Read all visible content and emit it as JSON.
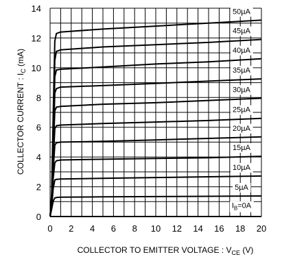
{
  "chart_data": {
    "type": "line",
    "xlabel": "COLLECTOR TO EMITTER VOLTAGE : V",
    "xlabel_sub": "CE",
    "xlabel_unit": " (V)",
    "ylabel": "COLLECTOR CURRENT : I",
    "ylabel_sub": "C",
    "ylabel_unit": " (mA)",
    "xlim": [
      0,
      20
    ],
    "ylim": [
      0,
      14
    ],
    "xticks": [
      "0",
      "2",
      "4",
      "6",
      "8",
      "10",
      "12",
      "14",
      "16",
      "18",
      "20"
    ],
    "yticks": [
      "0",
      "2",
      "4",
      "6",
      "8",
      "10",
      "12",
      "14"
    ],
    "grid": true,
    "series": [
      {
        "name": "50µA",
        "points": [
          [
            0.0,
            0.0
          ],
          [
            0.15,
            1.5
          ],
          [
            0.3,
            7.0
          ],
          [
            0.45,
            11.8
          ],
          [
            0.6,
            12.3
          ],
          [
            1.0,
            12.4
          ],
          [
            5,
            12.6
          ],
          [
            10,
            12.8
          ],
          [
            15,
            13.0
          ],
          [
            20,
            13.2
          ]
        ]
      },
      {
        "name": "45µA",
        "points": [
          [
            0.0,
            0.0
          ],
          [
            0.15,
            1.4
          ],
          [
            0.3,
            6.0
          ],
          [
            0.45,
            10.5
          ],
          [
            0.6,
            11.1
          ],
          [
            1.0,
            11.2
          ],
          [
            5,
            11.4
          ],
          [
            10,
            11.55
          ],
          [
            15,
            11.7
          ],
          [
            20,
            11.9
          ]
        ]
      },
      {
        "name": "40µA",
        "points": [
          [
            0.0,
            0.0
          ],
          [
            0.15,
            1.3
          ],
          [
            0.3,
            5.5
          ],
          [
            0.45,
            9.4
          ],
          [
            0.6,
            9.85
          ],
          [
            1.0,
            9.9
          ],
          [
            5,
            10.05
          ],
          [
            10,
            10.25
          ],
          [
            15,
            10.4
          ],
          [
            20,
            10.6
          ]
        ]
      },
      {
        "name": "35µA",
        "points": [
          [
            0.0,
            0.0
          ],
          [
            0.15,
            1.2
          ],
          [
            0.3,
            5.0
          ],
          [
            0.45,
            8.3
          ],
          [
            0.6,
            8.6
          ],
          [
            1.0,
            8.7
          ],
          [
            5,
            8.8
          ],
          [
            10,
            8.95
          ],
          [
            15,
            9.1
          ],
          [
            20,
            9.25
          ]
        ]
      },
      {
        "name": "30µA",
        "points": [
          [
            0.0,
            0.0
          ],
          [
            0.15,
            1.1
          ],
          [
            0.3,
            4.5
          ],
          [
            0.45,
            7.1
          ],
          [
            0.6,
            7.35
          ],
          [
            1.0,
            7.4
          ],
          [
            5,
            7.55
          ],
          [
            10,
            7.65
          ],
          [
            15,
            7.8
          ],
          [
            20,
            7.95
          ]
        ]
      },
      {
        "name": "25µA",
        "points": [
          [
            0.0,
            0.0
          ],
          [
            0.15,
            1.0
          ],
          [
            0.3,
            3.8
          ],
          [
            0.45,
            5.9
          ],
          [
            0.6,
            6.1
          ],
          [
            1.0,
            6.15
          ],
          [
            5,
            6.25
          ],
          [
            10,
            6.35
          ],
          [
            15,
            6.45
          ],
          [
            20,
            6.6
          ]
        ]
      },
      {
        "name": "20µA",
        "points": [
          [
            0.0,
            0.0
          ],
          [
            0.15,
            0.9
          ],
          [
            0.3,
            3.2
          ],
          [
            0.45,
            4.8
          ],
          [
            0.6,
            4.95
          ],
          [
            1.0,
            5.0
          ],
          [
            5,
            5.05
          ],
          [
            10,
            5.15
          ],
          [
            15,
            5.25
          ],
          [
            20,
            5.35
          ]
        ]
      },
      {
        "name": "15µA",
        "points": [
          [
            0.0,
            0.0
          ],
          [
            0.15,
            0.8
          ],
          [
            0.3,
            2.6
          ],
          [
            0.45,
            3.6
          ],
          [
            0.6,
            3.75
          ],
          [
            1.0,
            3.8
          ],
          [
            5,
            3.85
          ],
          [
            10,
            3.9
          ],
          [
            15,
            3.95
          ],
          [
            20,
            4.05
          ]
        ]
      },
      {
        "name": "10µA",
        "points": [
          [
            0.0,
            0.0
          ],
          [
            0.15,
            0.7
          ],
          [
            0.3,
            1.9
          ],
          [
            0.45,
            2.45
          ],
          [
            0.6,
            2.5
          ],
          [
            1.0,
            2.52
          ],
          [
            5,
            2.57
          ],
          [
            10,
            2.62
          ],
          [
            15,
            2.67
          ],
          [
            20,
            2.72
          ]
        ]
      },
      {
        "name": "5µA",
        "points": [
          [
            0.0,
            0.0
          ],
          [
            0.15,
            0.5
          ],
          [
            0.3,
            1.05
          ],
          [
            0.45,
            1.25
          ],
          [
            0.6,
            1.28
          ],
          [
            1.0,
            1.3
          ],
          [
            5,
            1.32
          ],
          [
            10,
            1.34
          ],
          [
            15,
            1.36
          ],
          [
            20,
            1.38
          ]
        ]
      },
      {
        "name": "I",
        "name_sub": "B",
        "name_suffix": "=0A",
        "points": [
          [
            0,
            0
          ],
          [
            20,
            0
          ]
        ]
      }
    ]
  }
}
